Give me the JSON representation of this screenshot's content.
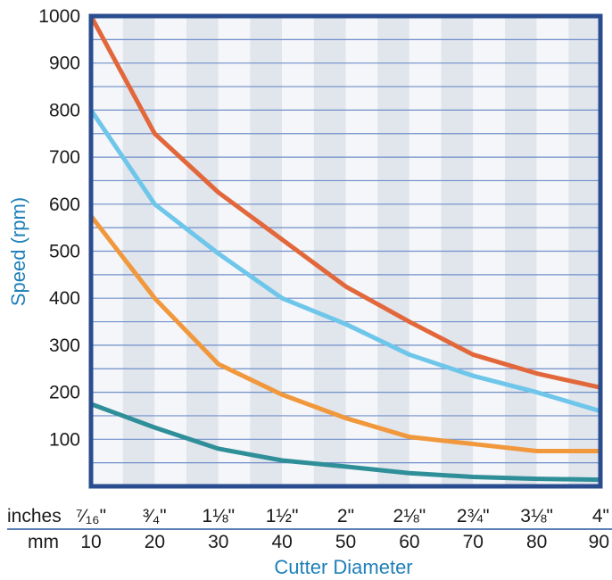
{
  "chart_data": {
    "type": "line",
    "ylabel": "Speed (rpm)",
    "xlabel": "Cutter Diameter",
    "ylim": [
      0,
      1000
    ],
    "yticks": [
      100,
      200,
      300,
      400,
      500,
      600,
      700,
      800,
      900,
      1000
    ],
    "xlim": [
      10,
      90
    ],
    "x": [
      10,
      20,
      30,
      40,
      50,
      60,
      70,
      80,
      90
    ],
    "x_rows": [
      {
        "label": "inches",
        "ticks": [
          "⁷⁄₁₆\"",
          "³⁄₄\"",
          "1⅛\"",
          "1½\"",
          "2\"",
          "2⅛\"",
          "2¾\"",
          "3⅛\"",
          "4\""
        ]
      },
      {
        "label": "mm",
        "ticks": [
          "10",
          "20",
          "30",
          "40",
          "50",
          "60",
          "70",
          "80",
          "90"
        ]
      }
    ],
    "grid": true,
    "series": [
      {
        "color": "#e2673a",
        "values": [
          1000,
          750,
          625,
          525,
          425,
          350,
          280,
          240,
          210
        ]
      },
      {
        "color": "#6ec6ea",
        "values": [
          800,
          600,
          495,
          400,
          345,
          280,
          235,
          200,
          160
        ]
      },
      {
        "color": "#f1983c",
        "values": [
          575,
          400,
          260,
          195,
          145,
          105,
          90,
          75,
          75
        ]
      },
      {
        "color": "#2f8f99",
        "values": [
          175,
          125,
          80,
          55,
          42,
          28,
          20,
          16,
          14
        ]
      }
    ],
    "colors": {
      "frame": "#2a4d8f",
      "axis_title": "#1e7fb8",
      "band_light": "#f4f6f9",
      "band_dark": "#e1e5ec",
      "gridline": "#6f8fc9",
      "divider": "#5b7fb5"
    }
  }
}
